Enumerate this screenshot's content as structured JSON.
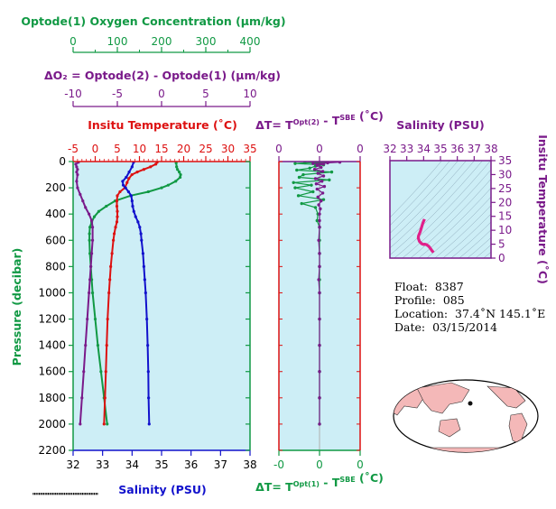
{
  "colors": {
    "oxygen": "#119944",
    "delta_o2": "#7a1a8a",
    "temperature": "#dd1111",
    "salinity": "#1111cc",
    "panel_bg": "#cdeef6"
  },
  "titles": {
    "oxygen_axis": "Optode(1) Oxygen Concentration (µm/kg)",
    "delta_o2_axis": "ΔO₂ = Optode(2) - Optode(1)   (µm/kg)",
    "temperature_axis": "Insitu Temperature (˚C)",
    "salinity_axis": "Salinity (PSU)",
    "pressure_axis": "Pressure (decibar)",
    "dt_top_axis": "ΔT= T^Opt(2) - T^SBE (˚C)",
    "dt_bottom_axis": "ΔT= T^Opt(1) - T^SBE (˚C)",
    "ts_salinity_axis": "Salinity (PSU)",
    "ts_temperature_axis": "Insitu Temperature (˚C)"
  },
  "float_info": {
    "float_label": "Float:",
    "float_value": "8387",
    "profile_label": "Profile:",
    "profile_value": "085",
    "location_label": "Location:",
    "location_value": "37.4˚N  145.1˚E",
    "date_label": "Date:",
    "date_value": "03/15/2014"
  },
  "chart_data": [
    {
      "type": "line",
      "name": "main-profile",
      "pressure_range": [
        0,
        2200
      ],
      "pressure_ticks": [
        0,
        200,
        400,
        600,
        800,
        1000,
        1200,
        1400,
        1600,
        1800,
        2000,
        2200
      ],
      "oxygen_ticks": [
        0,
        100,
        200,
        300,
        400
      ],
      "delta_o2_ticks": [
        -10,
        -5,
        0,
        5,
        10
      ],
      "temperature_ticks": [
        -5,
        0,
        5,
        10,
        15,
        20,
        25,
        30,
        35
      ],
      "salinity_ticks": [
        32,
        33,
        34,
        35,
        36,
        37,
        38
      ],
      "series": [
        {
          "name": "Oxygen",
          "axis": "oxygen",
          "pressure": [
            10,
            40,
            60,
            80,
            100,
            120,
            150,
            180,
            200,
            230,
            260,
            300,
            340,
            380,
            420,
            460,
            500,
            550,
            600,
            700,
            800,
            900,
            1000,
            1200,
            1400,
            1600,
            1800,
            2000
          ],
          "values": [
            233,
            234,
            236,
            240,
            243,
            242,
            232,
            215,
            200,
            170,
            130,
            95,
            75,
            58,
            48,
            42,
            38,
            37,
            37,
            38,
            40,
            42,
            44,
            50,
            56,
            63,
            70,
            77
          ]
        },
        {
          "name": "Delta O2",
          "axis": "delta_o2",
          "pressure": [
            5,
            20,
            40,
            60,
            80,
            100,
            150,
            200,
            250,
            300,
            350,
            400,
            450,
            500,
            600,
            700,
            800,
            900,
            1000,
            1200,
            1400,
            1600,
            1800,
            2000
          ],
          "values": [
            -9.4,
            -9.7,
            -9.6,
            -9.5,
            -9.6,
            -9.5,
            -9.6,
            -9.5,
            -9.2,
            -8.9,
            -8.6,
            -8.2,
            -7.9,
            -7.8,
            -7.8,
            -7.9,
            -8.0,
            -8.1,
            -8.2,
            -8.4,
            -8.6,
            -8.8,
            -9.0,
            -9.2
          ]
        },
        {
          "name": "Temperature",
          "axis": "temperature",
          "pressure": [
            5,
            20,
            40,
            60,
            80,
            100,
            130,
            160,
            200,
            230,
            260,
            300,
            340,
            380,
            420,
            460,
            500,
            550,
            600,
            700,
            800,
            900,
            1000,
            1200,
            1400,
            1600,
            1800,
            2000
          ],
          "values": [
            14.0,
            13.7,
            12.5,
            11.0,
            9.5,
            8.3,
            7.6,
            7.2,
            6.7,
            5.6,
            5.0,
            4.9,
            4.9,
            5.0,
            5.0,
            4.9,
            4.6,
            4.3,
            4.1,
            3.8,
            3.5,
            3.3,
            3.1,
            2.8,
            2.6,
            2.4,
            2.2,
            2.0
          ]
        },
        {
          "name": "Salinity",
          "axis": "salinity",
          "pressure": [
            5,
            40,
            80,
            120,
            150,
            180,
            200,
            230,
            260,
            300,
            340,
            380,
            420,
            460,
            500,
            550,
            600,
            700,
            800,
            900,
            1000,
            1200,
            1400,
            1600,
            1800,
            2000
          ],
          "values": [
            34.05,
            34.0,
            33.9,
            33.8,
            33.68,
            33.7,
            33.78,
            33.88,
            33.97,
            34.0,
            34.02,
            34.06,
            34.12,
            34.2,
            34.26,
            34.3,
            34.32,
            34.37,
            34.4,
            34.43,
            34.46,
            34.5,
            34.53,
            34.55,
            34.56,
            34.58
          ]
        }
      ]
    },
    {
      "type": "scatter",
      "name": "temperature-difference",
      "x_range": [
        -0.5,
        0.5
      ],
      "top_ticks": [
        -0.5,
        0,
        0.5
      ],
      "top_tick_labels": [
        "0",
        "0",
        "0"
      ],
      "bottom_tick_labels": [
        "-0",
        "0",
        "0"
      ],
      "series": [
        {
          "name": "Opt(1) - SBE",
          "pressure": [
            5,
            10,
            15,
            25,
            35,
            50,
            65,
            80,
            100,
            120,
            140,
            160,
            180,
            200,
            230,
            260,
            290,
            320,
            350,
            400,
            450,
            500,
            600,
            700,
            800,
            900,
            1000,
            1200,
            1400,
            1600,
            1800,
            2000
          ],
          "values": [
            0.08,
            -0.18,
            -0.3,
            0.05,
            -0.05,
            -0.12,
            -0.28,
            0.15,
            -0.2,
            -0.25,
            0.12,
            -0.32,
            -0.1,
            -0.3,
            -0.08,
            -0.26,
            0.05,
            -0.22,
            -0.05,
            -0.02,
            -0.03,
            0.0,
            0.0,
            0.0,
            0.0,
            0.0,
            0.0,
            0.0,
            0.0,
            0.0,
            0.0,
            0.0
          ]
        },
        {
          "name": "Opt(2) - SBE",
          "pressure": [
            5,
            10,
            15,
            20,
            30,
            45,
            60,
            75,
            90,
            110,
            130,
            150,
            170,
            190,
            210,
            240,
            270,
            300,
            330,
            360,
            400,
            450,
            500,
            600,
            700,
            800,
            900,
            1000,
            1200,
            1400,
            1600,
            1800,
            2000
          ],
          "values": [
            0.25,
            0.1,
            -0.08,
            0.05,
            -0.03,
            0.02,
            -0.06,
            0.04,
            -0.02,
            0.05,
            -0.05,
            0.03,
            -0.04,
            0.06,
            -0.03,
            0.04,
            -0.02,
            0.02,
            -0.01,
            0.01,
            0.0,
            0.0,
            0.0,
            -0.01,
            0.0,
            0.0,
            -0.01,
            0.0,
            0.0,
            0.0,
            0.0,
            0.0,
            0.0
          ]
        }
      ]
    },
    {
      "type": "line",
      "name": "temperature-salinity",
      "salinity_range": [
        32,
        38
      ],
      "temperature_range": [
        0,
        35
      ],
      "salinity_ticks": [
        32,
        33,
        34,
        35,
        36,
        37,
        38
      ],
      "temperature_ticks": [
        0,
        5,
        10,
        15,
        20,
        25,
        30,
        35
      ],
      "series": [
        {
          "name": "T-S",
          "salinity": [
            34.05,
            33.95,
            33.8,
            33.7,
            33.68,
            33.75,
            33.88,
            34.0,
            34.06,
            34.15,
            34.25,
            34.32,
            34.4,
            34.48,
            34.55,
            34.58
          ],
          "temperature": [
            14.0,
            12.5,
            9.5,
            8.0,
            7.2,
            6.0,
            5.2,
            4.9,
            5.0,
            4.9,
            4.5,
            4.1,
            3.5,
            2.8,
            2.3,
            2.0
          ]
        }
      ]
    }
  ]
}
